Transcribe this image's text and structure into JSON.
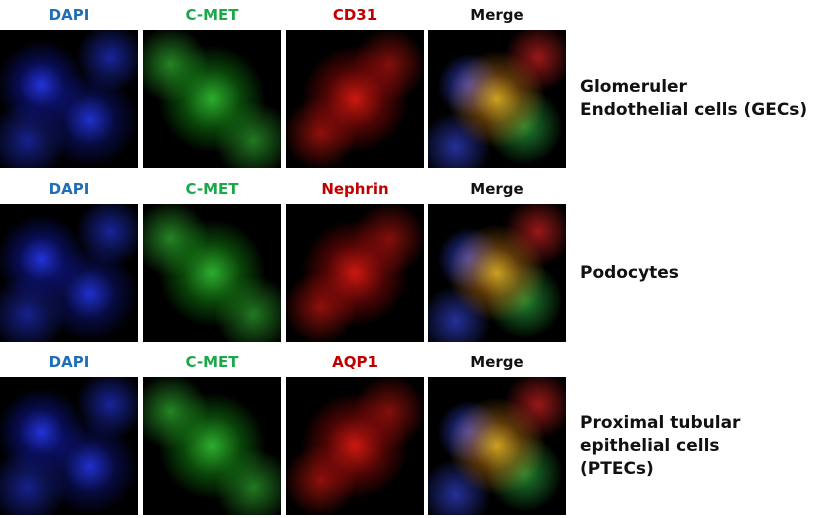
{
  "rows": [
    {
      "channels": [
        "DAPI",
        "C-MET",
        "CD31",
        "Merge"
      ],
      "label": [
        "Glomeruler",
        "Endothelial cells (GECs)"
      ]
    },
    {
      "channels": [
        "DAPI",
        "C-MET",
        "Nephrin",
        "Merge"
      ],
      "label": [
        "Podocytes"
      ]
    },
    {
      "channels": [
        "DAPI",
        "C-MET",
        "AQP1",
        "Merge"
      ],
      "label": [
        "Proximal tubular",
        "epithelial cells",
        "(PTECs)"
      ]
    }
  ]
}
